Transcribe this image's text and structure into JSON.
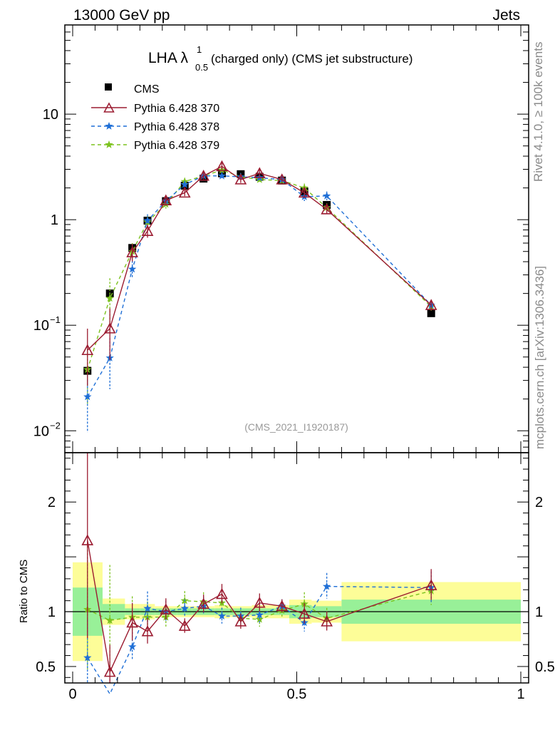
{
  "header": {
    "left": "13000 GeV pp",
    "right": "Jets",
    "title": "LHA λ",
    "title_sup": "1",
    "title_sub": "0.5",
    "title_rest": " (charged only) (CMS jet substructure)",
    "watermark": "(CMS_2021_I1920187)",
    "side_top": "Rivet 4.1.0, ≥ 100k events",
    "side_bottom": "mcplots.cern.ch [arXiv:1306.3436]",
    "ratio_ylabel": "Ratio to CMS"
  },
  "colors": {
    "cms": "#000000",
    "p370": "#9b1b30",
    "p378": "#1f6fd6",
    "p379": "#7cc21e",
    "band_inner": "#98f098",
    "band_outer": "#fdfd98"
  },
  "chart_data": {
    "type": "scatter",
    "xlim": [
      0,
      1
    ],
    "x_ticks": [
      "0",
      "0.5",
      "1"
    ],
    "main": {
      "yscale": "log",
      "ylim": [
        0.0062,
        70
      ],
      "y_ticks": [
        "10^-2",
        "10^-1",
        "1",
        "10"
      ],
      "legend": [
        "CMS",
        "Pythia 6.428 370",
        "Pythia 6.428 378",
        "Pythia 6.428 379"
      ]
    },
    "ratio": {
      "ylim": [
        0.35,
        2.45
      ],
      "y_ticks": [
        "0.5",
        "1",
        "2"
      ],
      "ylabel": "Ratio to CMS"
    },
    "x": [
      0.033,
      0.083,
      0.133,
      0.167,
      0.208,
      0.25,
      0.292,
      0.333,
      0.375,
      0.417,
      0.467,
      0.517,
      0.567,
      0.8
    ],
    "bin_edges": [
      0.0,
      0.0667,
      0.1167,
      0.15,
      0.1833,
      0.2333,
      0.2667,
      0.3167,
      0.35,
      0.4,
      0.4333,
      0.4833,
      0.5333,
      0.6,
      1.0
    ],
    "series": [
      {
        "name": "CMS",
        "values": [
          0.037,
          0.2,
          0.54,
          0.98,
          1.5,
          2.1,
          2.45,
          2.75,
          2.7,
          2.55,
          2.35,
          1.85,
          1.38,
          0.13
        ]
      },
      {
        "name": "Pythia 6.428 370",
        "values": [
          0.058,
          0.093,
          0.49,
          0.78,
          1.52,
          1.8,
          2.6,
          3.2,
          2.4,
          2.75,
          2.4,
          1.8,
          1.25,
          0.155
        ],
        "ratio": [
          1.65,
          0.45,
          0.9,
          0.82,
          1.02,
          0.87,
          1.07,
          1.16,
          0.91,
          1.08,
          1.05,
          0.98,
          0.91,
          1.24
        ]
      },
      {
        "name": "Pythia 6.428 378",
        "values": [
          0.021,
          0.049,
          0.34,
          0.98,
          1.5,
          2.15,
          2.6,
          2.6,
          2.55,
          2.5,
          2.4,
          1.65,
          1.68,
          0.155
        ],
        "ratio": [
          0.58,
          0.25,
          0.68,
          1.03,
          1.0,
          1.03,
          1.05,
          0.96,
          0.96,
          0.97,
          1.05,
          0.9,
          1.23,
          1.22
        ]
      },
      {
        "name": "Pythia 6.428 379",
        "values": [
          0.038,
          0.18,
          0.5,
          0.95,
          1.4,
          2.3,
          2.6,
          2.95,
          2.55,
          2.4,
          2.35,
          2.0,
          1.3,
          0.15
        ],
        "ratio": [
          1.02,
          0.92,
          0.95,
          0.95,
          0.95,
          1.1,
          1.09,
          1.08,
          0.94,
          0.93,
          1.01,
          1.07,
          0.94,
          1.19
        ]
      }
    ],
    "ratio_bands": {
      "inner_half_width": [
        0.22,
        0.07,
        0.03,
        0.03,
        0.03,
        0.03,
        0.03,
        0.03,
        0.03,
        0.03,
        0.03,
        0.06,
        0.05,
        0.11
      ],
      "outer_half_width": [
        0.45,
        0.12,
        0.07,
        0.07,
        0.05,
        0.05,
        0.05,
        0.06,
        0.05,
        0.06,
        0.06,
        0.11,
        0.1,
        0.27
      ]
    }
  }
}
